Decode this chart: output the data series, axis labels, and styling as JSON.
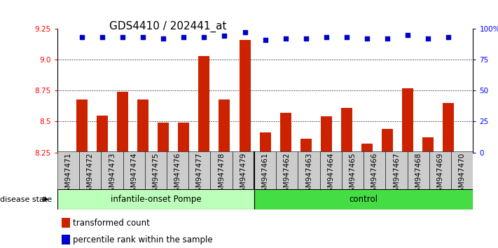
{
  "title": "GDS4410 / 202441_at",
  "samples": [
    "GSM947471",
    "GSM947472",
    "GSM947473",
    "GSM947474",
    "GSM947475",
    "GSM947476",
    "GSM947477",
    "GSM947478",
    "GSM947479",
    "GSM947461",
    "GSM947462",
    "GSM947463",
    "GSM947464",
    "GSM947465",
    "GSM947466",
    "GSM947467",
    "GSM947468",
    "GSM947469",
    "GSM947470"
  ],
  "bar_values": [
    8.68,
    8.55,
    8.74,
    8.68,
    8.49,
    8.49,
    9.03,
    8.68,
    9.16,
    8.41,
    8.57,
    8.36,
    8.54,
    8.61,
    8.32,
    8.44,
    8.77,
    8.37,
    8.65
  ],
  "pct_dot_vals": [
    93,
    93,
    93,
    93,
    92,
    93,
    93,
    94,
    97,
    91,
    92,
    92,
    93,
    93,
    92,
    92,
    95,
    92,
    93
  ],
  "bar_color": "#cc2200",
  "percentile_color": "#0000cc",
  "ylim_left": [
    8.25,
    9.25
  ],
  "ylim_right": [
    0,
    100
  ],
  "yticks_left": [
    8.25,
    8.5,
    8.75,
    9.0,
    9.25
  ],
  "yticks_right": [
    0,
    25,
    50,
    75,
    100
  ],
  "ytick_labels_right": [
    "0",
    "25",
    "50",
    "75",
    "100%"
  ],
  "hlines": [
    8.5,
    8.75,
    9.0
  ],
  "group1_label": "infantile-onset Pompe",
  "group2_label": "control",
  "group1_count": 9,
  "group2_count": 10,
  "group1_color": "#bbffbb",
  "group2_color": "#44dd44",
  "disease_state_label": "disease state",
  "legend_bar_label": "transformed count",
  "legend_pct_label": "percentile rank within the sample",
  "title_fontsize": 11,
  "tick_fontsize": 7.5,
  "label_fontsize": 8.5,
  "bar_width": 0.55,
  "ymin": 8.25
}
